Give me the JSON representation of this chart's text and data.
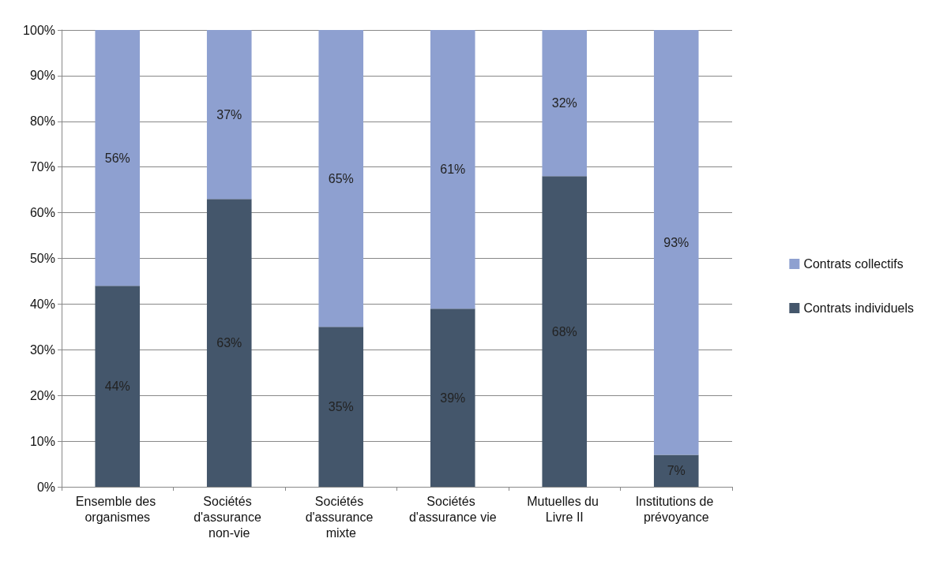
{
  "chart_data": {
    "type": "bar",
    "stacked": true,
    "categories": [
      "Ensemble des organismes",
      "Sociétés d'assurance non-vie",
      "Sociétés d'assurance mixte",
      "Sociétés d'assurance vie",
      "Mutuelles du Livre II",
      "Institutions de prévoyance"
    ],
    "series": [
      {
        "name": "Contrats individuels",
        "color": "#44566b",
        "values": [
          44,
          63,
          35,
          39,
          68,
          7
        ],
        "value_labels": [
          "44%",
          "63%",
          "35%",
          "39%",
          "68%",
          "7%"
        ]
      },
      {
        "name": "Contrats collectifs",
        "color": "#8ea0d0",
        "values": [
          56,
          37,
          65,
          61,
          32,
          93
        ],
        "value_labels": [
          "56%",
          "37%",
          "65%",
          "61%",
          "32%",
          "93%"
        ]
      }
    ],
    "ylim": [
      0,
      100
    ],
    "yticks": [
      {
        "value": 0,
        "label": "0%"
      },
      {
        "value": 10,
        "label": "10%"
      },
      {
        "value": 20,
        "label": "20%"
      },
      {
        "value": 30,
        "label": "30%"
      },
      {
        "value": 40,
        "label": "40%"
      },
      {
        "value": 50,
        "label": "50%"
      },
      {
        "value": 60,
        "label": "60%"
      },
      {
        "value": 70,
        "label": "70%"
      },
      {
        "value": 80,
        "label": "80%"
      },
      {
        "value": 90,
        "label": "90%"
      },
      {
        "value": 100,
        "label": "100%"
      }
    ],
    "grid": "y",
    "legend": "right"
  }
}
